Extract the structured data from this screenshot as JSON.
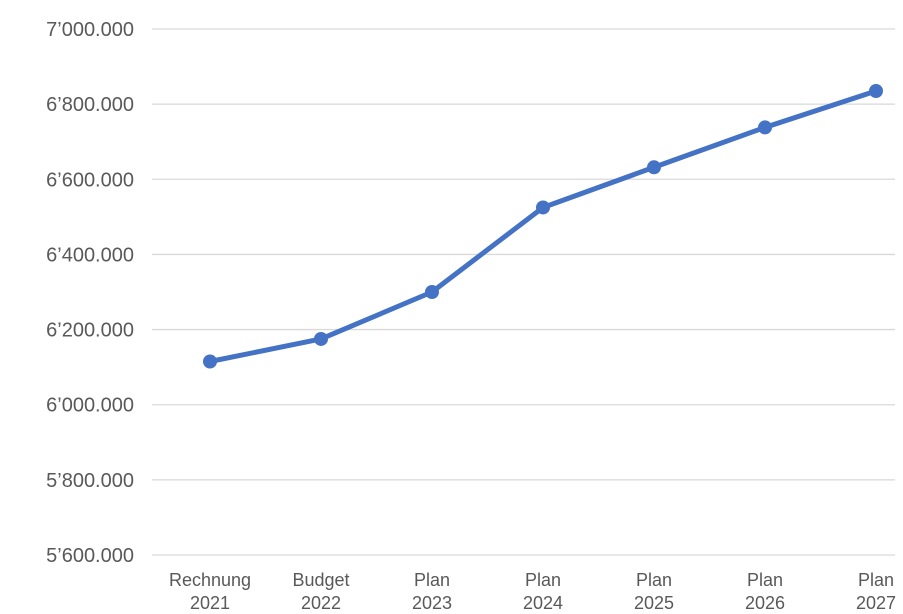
{
  "chart_data": {
    "type": "line",
    "categories": [
      [
        "Rechnung",
        "2021"
      ],
      [
        "Budget",
        "2022"
      ],
      [
        "Plan",
        "2023"
      ],
      [
        "Plan",
        "2024"
      ],
      [
        "Plan",
        "2025"
      ],
      [
        "Plan",
        "2026"
      ],
      [
        "Plan",
        "2027"
      ]
    ],
    "series": [
      {
        "values": [
          6115,
          6175,
          6300,
          6525,
          6632,
          6738,
          6835
        ],
        "color": "#4472c4"
      }
    ],
    "ylim": [
      5600,
      7000
    ],
    "yticks": [
      5600,
      5800,
      6000,
      6200,
      6400,
      6600,
      6800,
      7000
    ],
    "ytick_labels": [
      "5’600.000",
      "5’800.000",
      "6’000.000",
      "6’200.000",
      "6’400.000",
      "6’600.000",
      "6’800.000",
      "7’000.000"
    ],
    "grid": true,
    "legend": "none"
  }
}
